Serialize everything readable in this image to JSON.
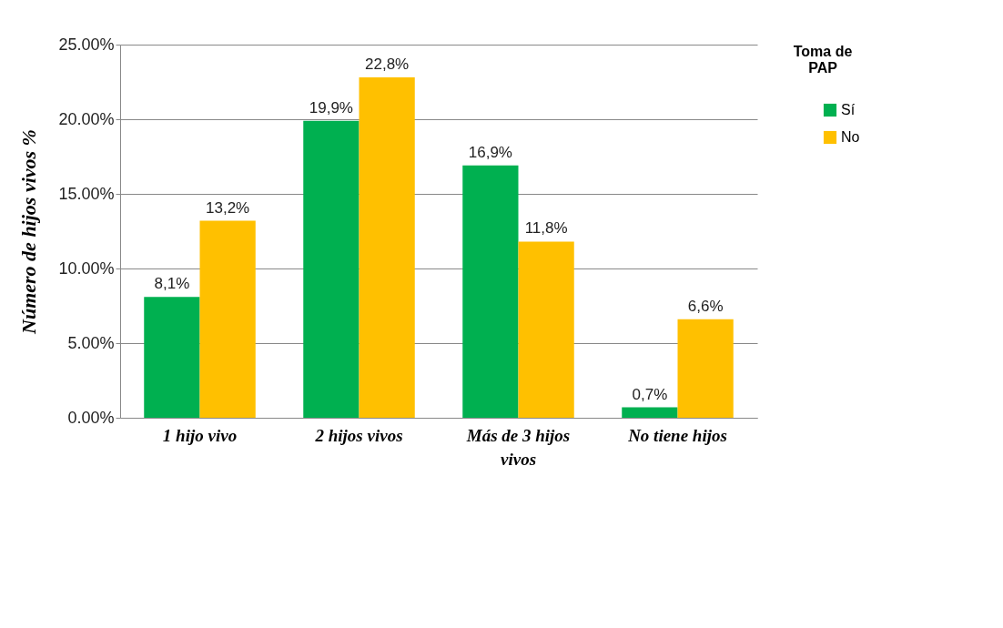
{
  "chart_data": {
    "type": "bar",
    "ylabel": "Número de hijos vivos %",
    "legend_title": "Toma de PAP",
    "legend": "right",
    "grid": "y",
    "categories": [
      "1 hijo vivo",
      "2 hijos vivos",
      "Más de 3 hijos vivos",
      "No tiene hijos"
    ],
    "ylim": [
      0,
      25
    ],
    "yticks": [
      {
        "value": 0,
        "label": "0.00%"
      },
      {
        "value": 5,
        "label": "5.00%"
      },
      {
        "value": 10,
        "label": "10.00%"
      },
      {
        "value": 15,
        "label": "15.00%"
      },
      {
        "value": 20,
        "label": "20.00%"
      },
      {
        "value": 25,
        "label": "25.00%"
      }
    ],
    "series": [
      {
        "name": "Sí",
        "color": "#00b050",
        "values": [
          8.1,
          19.9,
          16.9,
          0.7
        ],
        "value_labels": [
          "8,1%",
          "19,9%",
          "16,9%",
          "0,7%"
        ]
      },
      {
        "name": "No",
        "color": "#ffc000",
        "values": [
          13.2,
          22.8,
          11.8,
          6.6
        ],
        "value_labels": [
          "13,2%",
          "22,8%",
          "11,8%",
          "6,6%"
        ]
      }
    ]
  }
}
